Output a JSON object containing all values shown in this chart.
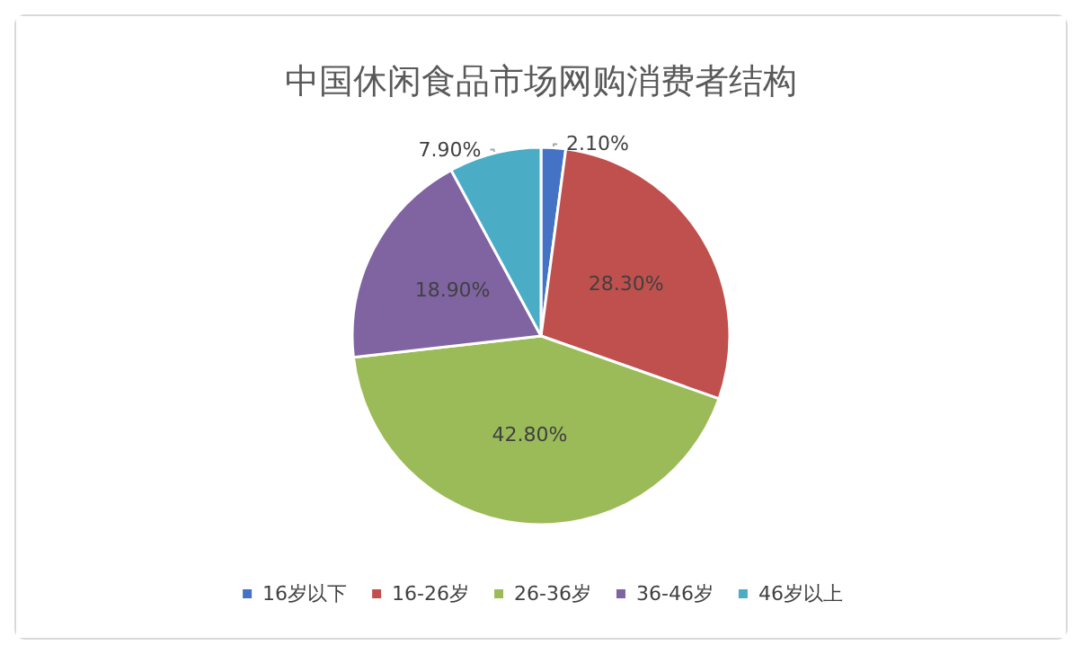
{
  "chart_data": {
    "type": "pie",
    "title": "中国休闲食品市场网购消费者结构",
    "categories": [
      "16岁以下",
      "16-26岁",
      "26-36岁",
      "36-46岁",
      "46岁以上"
    ],
    "values": [
      2.1,
      28.3,
      42.8,
      18.9,
      7.9
    ],
    "colors": [
      "#4472c4",
      "#c0504d",
      "#9bbb59",
      "#8064a2",
      "#4bacc6"
    ],
    "value_labels": [
      "2.10%",
      "28.30%",
      "42.80%",
      "18.90%",
      "7.90%"
    ],
    "legend": "bottom"
  }
}
